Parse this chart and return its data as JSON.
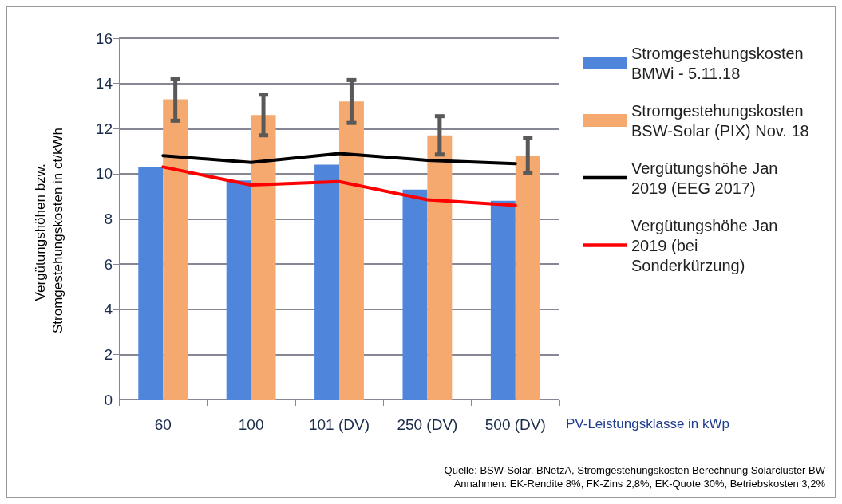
{
  "chart_data": {
    "type": "bar",
    "categories": [
      "60",
      "100",
      "101 (DV)",
      "250 (DV)",
      "500 (DV)"
    ],
    "xlabel": "PV-Leistungsklasse in kWp",
    "ylabel": "Vergütungshöhen bzw. Stromgestehungskosten in ct/kWh",
    "ylim": [
      0,
      16
    ],
    "yticks": [
      0,
      2,
      4,
      6,
      8,
      10,
      12,
      14,
      16
    ],
    "grid": "y",
    "legend": "right",
    "series": [
      {
        "name": "Stromgestehungskosten BMWi - 5.11.18",
        "color": "#4f86dc",
        "values": [
          10.3,
          9.7,
          10.4,
          9.3,
          8.8
        ]
      },
      {
        "name": "Stromgestehungskosten BSW-Solar (PIX) Nov. 18",
        "color": "#f5a96f",
        "values": [
          13.3,
          12.6,
          13.2,
          11.7,
          10.8
        ],
        "errors": [
          [
            12.35,
            14.2
          ],
          [
            11.7,
            13.5
          ],
          [
            12.25,
            14.15
          ],
          [
            10.85,
            12.55
          ],
          [
            10.05,
            11.6
          ]
        ]
      },
      {
        "name": "Vergütungshöhe Jan 2019 (EEG 2017)",
        "type": "line",
        "color": "#000000",
        "values": [
          10.8,
          10.5,
          10.9,
          10.6,
          10.45
        ]
      },
      {
        "name": "Vergütungshöhe Jan 2019 (bei Sonderkürzung)",
        "type": "line",
        "color": "#ff0000",
        "values": [
          10.3,
          9.5,
          9.65,
          8.85,
          8.6
        ]
      }
    ],
    "annotations": [
      "Quelle: BSW-Solar, BNetzA, Stromgestehungskosten Berechnung Solarcluster BW",
      "Annahmen: EK-Rendite 8%, FK-Zins 2,8%, EK-Quote 30%, Betriebskosten 3,2%"
    ]
  }
}
